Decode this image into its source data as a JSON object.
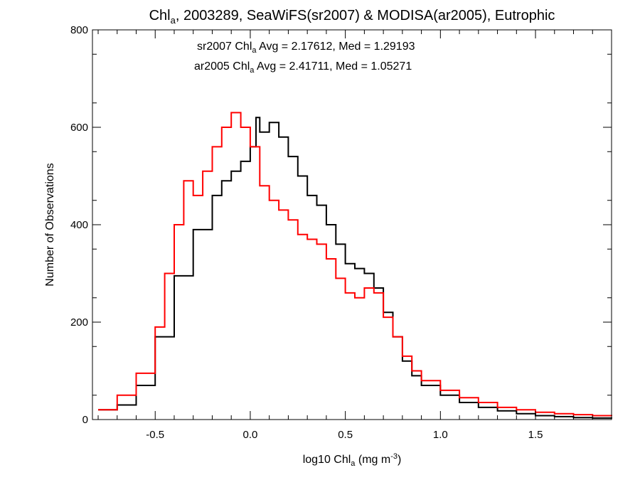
{
  "chart_data": {
    "type": "line",
    "title": {
      "pre": "Chl",
      "sub": "a",
      "post": ", 2003289, SeaWiFS(sr2007) & MODISA(ar2005), Eutrophic"
    },
    "xlabel": {
      "pre": "log10 Chl",
      "sub": "a",
      "mid": " (mg m",
      "sup": "-3",
      "post": ")"
    },
    "ylabel": "Number of Observations",
    "xlim": [
      -0.83,
      1.9
    ],
    "ylim": [
      0,
      800
    ],
    "x_ticks": [
      -0.5,
      0.0,
      0.5,
      1.0,
      1.5
    ],
    "x_tick_labels": [
      "-0.5",
      "0.0",
      "0.5",
      "1.0",
      "1.5"
    ],
    "y_ticks": [
      0,
      200,
      400,
      600,
      800
    ],
    "y_tick_labels": [
      "0",
      "200",
      "400",
      "600",
      "800"
    ],
    "grid": false,
    "annotations": [
      {
        "pre": "sr2007 Chl",
        "sub": "a",
        "post": " Avg = 2.17612, Med = 1.29193",
        "color": "#000000"
      },
      {
        "pre": "ar2005 Chl",
        "sub": "a",
        "post": " Avg = 2.41711, Med = 1.05271",
        "color": "#ff0000"
      }
    ],
    "series": [
      {
        "color": "#000000",
        "x": [
          -0.8,
          -0.7,
          -0.6,
          -0.5,
          -0.4,
          -0.3,
          -0.2,
          -0.15,
          -0.1,
          -0.05,
          0.0,
          0.03,
          0.05,
          0.1,
          0.15,
          0.2,
          0.25,
          0.3,
          0.35,
          0.4,
          0.45,
          0.5,
          0.55,
          0.6,
          0.65,
          0.7,
          0.75,
          0.8,
          0.85,
          0.9,
          1.0,
          1.1,
          1.2,
          1.3,
          1.4,
          1.5,
          1.6,
          1.7,
          1.8,
          1.9
        ],
        "y": [
          20,
          30,
          70,
          170,
          295,
          390,
          460,
          490,
          510,
          530,
          560,
          620,
          590,
          610,
          580,
          540,
          500,
          460,
          440,
          400,
          360,
          320,
          310,
          300,
          270,
          220,
          170,
          120,
          90,
          70,
          50,
          35,
          25,
          18,
          12,
          8,
          6,
          4,
          3,
          2
        ]
      },
      {
        "color": "#ff0000",
        "x": [
          -0.8,
          -0.7,
          -0.6,
          -0.5,
          -0.45,
          -0.4,
          -0.35,
          -0.3,
          -0.25,
          -0.2,
          -0.15,
          -0.1,
          -0.05,
          0.0,
          0.05,
          0.1,
          0.15,
          0.2,
          0.25,
          0.3,
          0.35,
          0.4,
          0.45,
          0.5,
          0.55,
          0.6,
          0.65,
          0.7,
          0.75,
          0.8,
          0.85,
          0.9,
          1.0,
          1.1,
          1.2,
          1.3,
          1.4,
          1.5,
          1.6,
          1.7,
          1.8,
          1.9
        ],
        "y": [
          20,
          50,
          95,
          190,
          300,
          400,
          490,
          460,
          510,
          560,
          600,
          630,
          600,
          560,
          480,
          450,
          430,
          410,
          380,
          370,
          360,
          330,
          290,
          260,
          250,
          270,
          260,
          210,
          170,
          130,
          100,
          80,
          60,
          45,
          35,
          25,
          20,
          15,
          12,
          10,
          8,
          7
        ]
      }
    ]
  }
}
